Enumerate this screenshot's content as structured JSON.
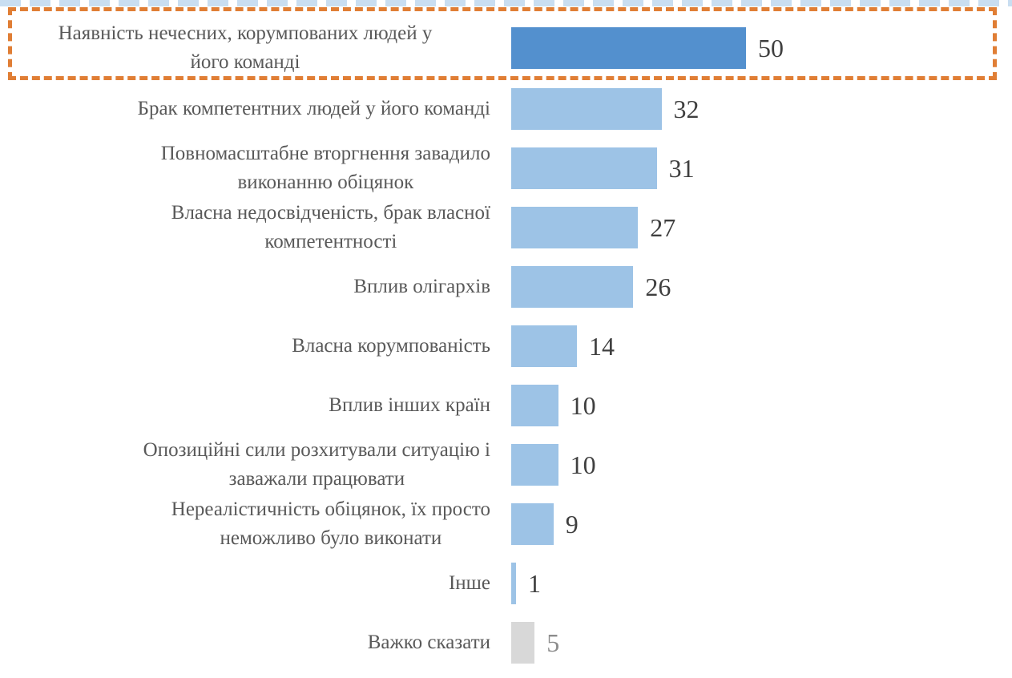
{
  "chart_data": {
    "type": "bar",
    "orientation": "horizontal",
    "title": "",
    "xlabel": "",
    "ylabel": "",
    "xlim": [
      0,
      100
    ],
    "grid": false,
    "legend": "none",
    "categories": [
      "Наявність нечесних, корумпованих людей у його команді",
      "Брак компетентних людей у його команді",
      "Повномасштабне вторгнення завадило виконанню обіцянок",
      "Власна недосвідченість, брак власної компетентності",
      "Вплив олігархів",
      "Власна корумпованість",
      "Вплив інших країн",
      "Опозиційні сили розхитували ситуацію і заважали працювати",
      "Нереалістичність обіцянок, їх просто неможливо було виконати",
      "Інше",
      "Важко сказати"
    ],
    "label_lines": [
      [
        "Наявність нечесних, корумпованих людей у",
        "його команді"
      ],
      [
        "Брак компетентних людей у його команді"
      ],
      [
        "Повномасштабне вторгнення завадило",
        "виконанню обіцянок"
      ],
      [
        "Власна недосвідченість, брак власної",
        "компетентності"
      ],
      [
        "Вплив олігархів"
      ],
      [
        "Власна корумпованість"
      ],
      [
        "Вплив інших країн"
      ],
      [
        "Опозиційні сили розхитували ситуацію і",
        "заважали працювати"
      ],
      [
        "Нереалістичність обіцянок, їх просто",
        "неможливо було виконати"
      ],
      [
        "Інше"
      ],
      [
        "Важко сказати"
      ]
    ],
    "values": [
      50,
      32,
      31,
      27,
      26,
      14,
      10,
      10,
      9,
      1,
      5
    ],
    "bar_colors": [
      "#5390CE",
      "#9DC3E6",
      "#9DC3E6",
      "#9DC3E6",
      "#9DC3E6",
      "#9DC3E6",
      "#9DC3E6",
      "#9DC3E6",
      "#9DC3E6",
      "#9DC3E6",
      "#D8D8D8"
    ],
    "value_label_colors": [
      "#3F3F3F",
      "#3F3F3F",
      "#3F3F3F",
      "#3F3F3F",
      "#3F3F3F",
      "#3F3F3F",
      "#3F3F3F",
      "#3F3F3F",
      "#3F3F3F",
      "#3F3F3F",
      "#8C8C8C"
    ],
    "highlighted_index": 0
  },
  "colors": {
    "highlight_border": "#E07E35",
    "bar_primary": "#5390CE",
    "bar_light": "#9DC3E6",
    "bar_gray": "#D8D8D8",
    "category_text": "#595959",
    "value_text": "#3F3F3F",
    "background": "#FFFFFF"
  },
  "highlight": {
    "style": "dashed-rectangle",
    "row": "Наявність нечесних, корумпованих людей у його команді",
    "value": 50
  }
}
